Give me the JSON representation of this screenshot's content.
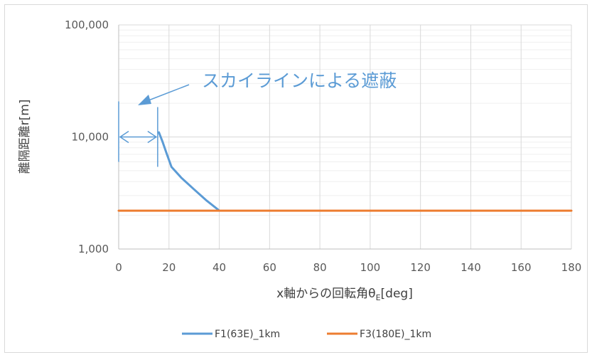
{
  "chart_data": {
    "type": "line",
    "title": "",
    "xlabel": "x軸からの回転角θ",
    "xlabel_sub": "E",
    "xlabel_tail": "[deg]",
    "ylabel": "離隔距離r[m]",
    "y_scale": "log",
    "xlim": [
      0,
      180
    ],
    "ylim": [
      1000,
      100000
    ],
    "x_ticks": [
      0,
      20,
      40,
      60,
      80,
      100,
      120,
      140,
      160,
      180
    ],
    "x_tick_labels": [
      "0",
      "20",
      "40",
      "60",
      "80",
      "100",
      "120",
      "140",
      "160",
      "180"
    ],
    "y_ticks": [
      1000,
      10000,
      100000
    ],
    "y_tick_labels": [
      "1,000",
      "10,000",
      "100,000"
    ],
    "grid": true,
    "legend_position": "bottom",
    "series": [
      {
        "name": "F1(63E)_1km",
        "color": "#5b9bd5",
        "x": [
          16,
          17.5,
          19,
          21,
          25,
          30,
          35,
          40
        ],
        "y": [
          11000,
          9000,
          7200,
          5400,
          4300,
          3400,
          2700,
          2200
        ]
      },
      {
        "name": "F3(180E)_1km",
        "color": "#ed7d31",
        "x": [
          0,
          180
        ],
        "y": [
          2200,
          2200
        ]
      }
    ],
    "annotation": {
      "text": "スカイラインによる遮蔽",
      "color": "#5b9bd5",
      "range_x": [
        0,
        15.5
      ]
    }
  }
}
